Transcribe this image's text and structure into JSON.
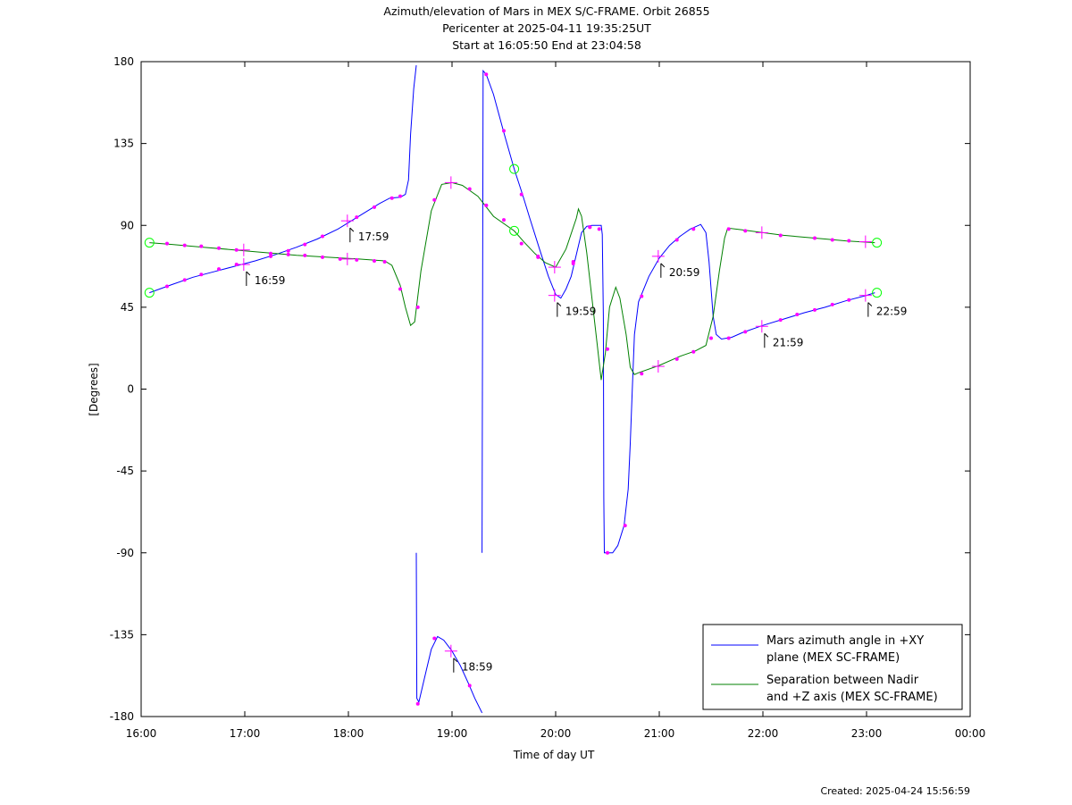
{
  "chart_data": {
    "type": "line",
    "title_lines": [
      "Azimuth/elevation of Mars in MEX S/C-FRAME.  Orbit 26855",
      "Pericenter at 2025-04-11 19:35:25UT",
      "Start at 16:05:50 End at 23:04:58"
    ],
    "xlabel": "Time of day UT",
    "ylabel": "[Degrees]",
    "footer": "Created: 2025-04-24 15:56:59",
    "xlim": [
      16.0,
      24.0
    ],
    "ylim": [
      -180,
      180
    ],
    "x_ticks": [
      16,
      17,
      18,
      19,
      20,
      21,
      22,
      23,
      24
    ],
    "x_tick_labels": [
      "16:00",
      "17:00",
      "18:00",
      "19:00",
      "20:00",
      "21:00",
      "22:00",
      "23:00",
      "00:00"
    ],
    "y_ticks": [
      180,
      135,
      90,
      45,
      0,
      -45,
      -90,
      -135,
      -180
    ],
    "y_tick_labels": [
      "180",
      "135",
      "90",
      "45",
      "0",
      "-45",
      "-90",
      "-135",
      "-180"
    ],
    "grid": false,
    "legend_position": "bottom-right",
    "colors": {
      "azimuth": "#0000ff",
      "separation": "#008000",
      "marker": "#ff00ff",
      "endpoint": "#00ff00",
      "axes": "#000000"
    },
    "series": [
      {
        "key": "azimuth",
        "name_lines": [
          "Mars azimuth angle in +XY",
          "plane (MEX SC-FRAME)"
        ],
        "segments": [
          [
            [
              16.08,
              53
            ],
            [
              16.3,
              57.5
            ],
            [
              16.5,
              61.5
            ],
            [
              16.7,
              64.5
            ],
            [
              16.9,
              67.5
            ],
            [
              17.1,
              70.5
            ],
            [
              17.3,
              74
            ],
            [
              17.5,
              78
            ],
            [
              17.7,
              82.5
            ],
            [
              17.9,
              88
            ],
            [
              18.1,
              95
            ],
            [
              18.3,
              102
            ],
            [
              18.4,
              105
            ],
            [
              18.5,
              105.5
            ],
            [
              18.55,
              107
            ],
            [
              18.58,
              115
            ],
            [
              18.6,
              140
            ],
            [
              18.63,
              165
            ],
            [
              18.655,
              178
            ]
          ],
          [
            [
              18.655,
              -90
            ],
            [
              18.66,
              -170
            ],
            [
              18.68,
              -172
            ],
            [
              18.75,
              -155
            ],
            [
              18.8,
              -143
            ],
            [
              18.86,
              -136
            ],
            [
              18.92,
              -138
            ],
            [
              19.0,
              -144
            ],
            [
              19.08,
              -152
            ],
            [
              19.16,
              -162
            ],
            [
              19.22,
              -170
            ],
            [
              19.29,
              -178
            ]
          ],
          [
            [
              19.29,
              -90
            ],
            [
              19.3,
              175
            ],
            [
              19.33,
              173
            ],
            [
              19.4,
              162
            ],
            [
              19.5,
              141
            ],
            [
              19.6,
              121
            ],
            [
              19.68,
              107
            ],
            [
              19.75,
              94
            ],
            [
              19.85,
              76
            ],
            [
              19.93,
              62
            ],
            [
              20.0,
              52
            ],
            [
              20.05,
              50
            ],
            [
              20.1,
              55
            ],
            [
              20.15,
              62
            ],
            [
              20.2,
              74
            ],
            [
              20.25,
              86
            ],
            [
              20.3,
              89.5
            ],
            [
              20.35,
              90
            ],
            [
              20.44,
              90
            ],
            [
              20.45,
              85
            ],
            [
              20.46,
              40
            ],
            [
              20.465,
              -60
            ],
            [
              20.47,
              -90
            ],
            [
              20.55,
              -90
            ],
            [
              20.6,
              -86
            ],
            [
              20.66,
              -75
            ],
            [
              20.7,
              -55
            ],
            [
              20.72,
              -30
            ],
            [
              20.74,
              0
            ],
            [
              20.76,
              30
            ],
            [
              20.8,
              48
            ],
            [
              20.9,
              62
            ],
            [
              21.0,
              72
            ],
            [
              21.1,
              79
            ],
            [
              21.2,
              84
            ],
            [
              21.3,
              88
            ],
            [
              21.4,
              90.5
            ],
            [
              21.45,
              86
            ],
            [
              21.48,
              70
            ],
            [
              21.5,
              55
            ],
            [
              21.52,
              40
            ],
            [
              21.55,
              30
            ],
            [
              21.6,
              27.5
            ],
            [
              21.7,
              28.5
            ],
            [
              21.8,
              31
            ],
            [
              22.0,
              35
            ],
            [
              22.2,
              38.5
            ],
            [
              22.4,
              42
            ],
            [
              22.6,
              45
            ],
            [
              22.8,
              48.5
            ],
            [
              23.0,
              51.5
            ],
            [
              23.08,
              53
            ]
          ]
        ]
      },
      {
        "key": "separation",
        "name_lines": [
          "Separation between Nadir",
          "and +Z axis (MEX SC-FRAME)"
        ],
        "segments": [
          [
            [
              16.08,
              80.5
            ],
            [
              16.3,
              79.5
            ],
            [
              16.6,
              78
            ],
            [
              16.9,
              76.5
            ],
            [
              17.2,
              75
            ],
            [
              17.5,
              73.5
            ],
            [
              17.8,
              72.5
            ],
            [
              18.1,
              71.5
            ],
            [
              18.35,
              70.5
            ],
            [
              18.42,
              68
            ],
            [
              18.5,
              57
            ],
            [
              18.55,
              45
            ],
            [
              18.6,
              35
            ],
            [
              18.64,
              37
            ],
            [
              18.7,
              65
            ],
            [
              18.8,
              98
            ],
            [
              18.9,
              112.5
            ],
            [
              19.0,
              113.5
            ],
            [
              19.1,
              112
            ],
            [
              19.25,
              106
            ],
            [
              19.4,
              95
            ],
            [
              19.6,
              87
            ],
            [
              19.7,
              80.5
            ],
            [
              19.8,
              74.5
            ],
            [
              19.9,
              69.5
            ],
            [
              20.0,
              67
            ],
            [
              20.1,
              77
            ],
            [
              20.2,
              94
            ],
            [
              20.22,
              99
            ],
            [
              20.25,
              95
            ],
            [
              20.3,
              75
            ],
            [
              20.35,
              50
            ],
            [
              20.4,
              25
            ],
            [
              20.44,
              5
            ],
            [
              20.48,
              20
            ],
            [
              20.52,
              45
            ],
            [
              20.58,
              56
            ],
            [
              20.62,
              50
            ],
            [
              20.68,
              30
            ],
            [
              20.72,
              12
            ],
            [
              20.76,
              8
            ],
            [
              20.8,
              9
            ],
            [
              21.0,
              13
            ],
            [
              21.2,
              18
            ],
            [
              21.35,
              21
            ],
            [
              21.45,
              24
            ],
            [
              21.52,
              40
            ],
            [
              21.58,
              65
            ],
            [
              21.63,
              83
            ],
            [
              21.66,
              88.5
            ],
            [
              21.8,
              87.5
            ],
            [
              22.0,
              86
            ],
            [
              22.2,
              84.5
            ],
            [
              22.4,
              83.5
            ],
            [
              22.6,
              82.5
            ],
            [
              22.8,
              81.5
            ],
            [
              23.08,
              80.5
            ]
          ]
        ]
      }
    ],
    "dot_markers": [
      [
        16.25,
        56.5
      ],
      [
        16.42,
        60
      ],
      [
        16.58,
        63
      ],
      [
        16.75,
        66
      ],
      [
        16.92,
        68.5
      ],
      [
        17.25,
        73
      ],
      [
        17.42,
        76
      ],
      [
        17.58,
        79.5
      ],
      [
        17.75,
        84
      ],
      [
        18.08,
        94.5
      ],
      [
        18.25,
        100
      ],
      [
        18.42,
        105
      ],
      [
        18.5,
        106
      ],
      [
        16.25,
        80
      ],
      [
        16.42,
        79
      ],
      [
        16.58,
        78.5
      ],
      [
        16.75,
        77.5
      ],
      [
        16.92,
        76.5
      ],
      [
        17.25,
        74.5
      ],
      [
        17.42,
        74
      ],
      [
        17.58,
        73.5
      ],
      [
        17.75,
        72.5
      ],
      [
        17.92,
        71.5
      ],
      [
        18.08,
        71
      ],
      [
        18.25,
        70.5
      ],
      [
        18.35,
        70
      ],
      [
        18.5,
        55
      ],
      [
        18.67,
        45
      ],
      [
        18.83,
        104
      ],
      [
        19.17,
        110
      ],
      [
        19.33,
        101
      ],
      [
        19.5,
        93
      ],
      [
        19.67,
        80
      ],
      [
        19.83,
        72.5
      ],
      [
        20.17,
        70
      ],
      [
        20.33,
        89
      ],
      [
        20.42,
        88
      ],
      [
        18.67,
        -173
      ],
      [
        18.83,
        -137
      ],
      [
        19.17,
        -163
      ],
      [
        19.33,
        173
      ],
      [
        19.5,
        142
      ],
      [
        19.67,
        107
      ],
      [
        19.83,
        73
      ],
      [
        20.17,
        69
      ],
      [
        20.33,
        89
      ],
      [
        20.5,
        -90
      ],
      [
        20.67,
        -75
      ],
      [
        20.83,
        51
      ],
      [
        21.17,
        82
      ],
      [
        21.33,
        88
      ],
      [
        21.5,
        28
      ],
      [
        21.67,
        28
      ],
      [
        21.83,
        31.5
      ],
      [
        22.17,
        38
      ],
      [
        22.33,
        41
      ],
      [
        22.5,
        43.5
      ],
      [
        22.67,
        46.5
      ],
      [
        22.83,
        49
      ],
      [
        22.5,
        83
      ],
      [
        22.67,
        82
      ],
      [
        22.83,
        81.5
      ],
      [
        22.17,
        84.5
      ],
      [
        21.83,
        87
      ],
      [
        21.67,
        88
      ],
      [
        20.83,
        8.5
      ],
      [
        21.17,
        16.5
      ],
      [
        21.33,
        20.5
      ],
      [
        20.5,
        22
      ],
      [
        19.33,
        101
      ]
    ],
    "hour_markers": [
      {
        "x": 16.99,
        "y": 68.5,
        "label": "16:59"
      },
      {
        "x": 16.99,
        "y": 76.5,
        "label": ""
      },
      {
        "x": 17.99,
        "y": 92.5,
        "label": "17:59"
      },
      {
        "x": 17.99,
        "y": 71.5,
        "label": ""
      },
      {
        "x": 18.99,
        "y": -144,
        "label": "18:59"
      },
      {
        "x": 18.99,
        "y": 113.5,
        "label": ""
      },
      {
        "x": 19.99,
        "y": 51.5,
        "label": "19:59"
      },
      {
        "x": 19.99,
        "y": 67,
        "label": ""
      },
      {
        "x": 20.99,
        "y": 73,
        "label": "20:59"
      },
      {
        "x": 20.99,
        "y": 12.5,
        "label": ""
      },
      {
        "x": 21.99,
        "y": 34.5,
        "label": "21:59"
      },
      {
        "x": 21.99,
        "y": 86,
        "label": ""
      },
      {
        "x": 22.99,
        "y": 51.5,
        "label": "22:59"
      },
      {
        "x": 22.99,
        "y": 81,
        "label": ""
      }
    ],
    "endpoint_circles": [
      [
        16.08,
        53
      ],
      [
        16.08,
        80.5
      ],
      [
        23.1,
        53
      ],
      [
        23.1,
        80.5
      ],
      [
        19.6,
        121
      ],
      [
        19.6,
        87
      ]
    ]
  }
}
